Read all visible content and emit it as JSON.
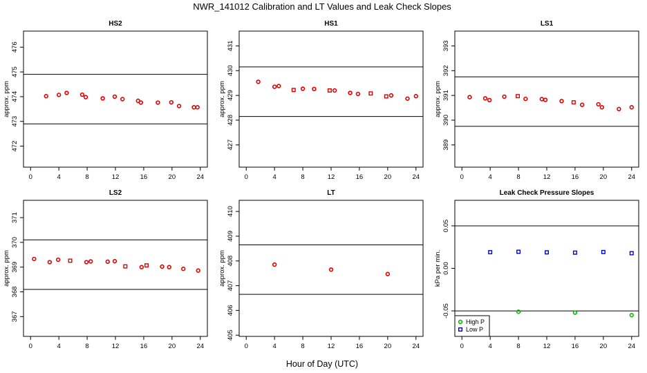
{
  "figure": {
    "title": "NWR_141012  Calibration and LT Values and Leak Check Slopes",
    "xlabel": "Hour of Day (UTC)"
  },
  "colors": {
    "red": "#dd0000",
    "green": "#00bb00",
    "blue": "#0000cc",
    "line": "#000000"
  },
  "chart_data": [
    {
      "type": "scatter",
      "title": "HS2",
      "ylabel": "approx. ppm",
      "xlim": [
        -1,
        25
      ],
      "ylim": [
        471.15,
        476.65
      ],
      "xticks": [
        0,
        4,
        8,
        12,
        16,
        20,
        24
      ],
      "yticks": [
        472,
        473,
        474,
        475,
        476
      ],
      "hlines": [
        474.9,
        472.9
      ],
      "series": [
        {
          "marker": "circle",
          "color": "#dd0000",
          "x": [
            2.2,
            4.0,
            5.1,
            7.3,
            7.8,
            10.2,
            11.9,
            13.0,
            15.2,
            15.6,
            18.0,
            19.9,
            21.0,
            23.1,
            23.6
          ],
          "y": [
            474.02,
            474.07,
            474.15,
            474.08,
            473.98,
            473.93,
            474.0,
            473.9,
            473.83,
            473.76,
            473.76,
            473.77,
            473.62,
            473.57,
            473.57
          ]
        }
      ]
    },
    {
      "type": "scatter",
      "title": "HS1",
      "ylabel": "approx. ppm",
      "xlim": [
        -1,
        25
      ],
      "ylim": [
        426.1,
        431.6
      ],
      "xticks": [
        0,
        4,
        8,
        12,
        16,
        20,
        24
      ],
      "yticks": [
        427,
        428,
        429,
        430,
        431
      ],
      "hlines": [
        430.15,
        428.15
      ],
      "series": [
        {
          "marker": "circle",
          "color": "#dd0000",
          "x": [
            1.7,
            4.0,
            4.6,
            8.0,
            9.6,
            12.5,
            14.7,
            15.8,
            20.5,
            22.8,
            24.0
          ],
          "y": [
            429.55,
            429.35,
            429.38,
            429.27,
            429.26,
            429.2,
            429.1,
            429.06,
            429.0,
            428.87,
            428.97
          ]
        },
        {
          "marker": "square",
          "color": "#dd0000",
          "x": [
            6.7,
            11.8,
            17.6,
            19.8
          ],
          "y": [
            429.22,
            429.2,
            429.08,
            428.96
          ]
        }
      ]
    },
    {
      "type": "scatter",
      "title": "LS1",
      "ylabel": "approx. ppm",
      "xlim": [
        -1,
        25
      ],
      "ylim": [
        388.1,
        393.6
      ],
      "xticks": [
        0,
        4,
        8,
        12,
        16,
        20,
        24
      ],
      "yticks": [
        389,
        390,
        391,
        392,
        393
      ],
      "hlines": [
        391.75,
        389.75
      ],
      "series": [
        {
          "marker": "circle",
          "color": "#dd0000",
          "x": [
            1.1,
            3.3,
            3.9,
            6.0,
            9.0,
            11.3,
            11.8,
            14.1,
            17.0,
            19.3,
            19.8,
            22.2,
            24.0
          ],
          "y": [
            390.93,
            390.88,
            390.81,
            390.95,
            390.86,
            390.85,
            390.82,
            390.77,
            390.62,
            390.64,
            390.52,
            390.45,
            390.52
          ]
        },
        {
          "marker": "square",
          "color": "#dd0000",
          "x": [
            7.9,
            15.8
          ],
          "y": [
            390.97,
            390.72
          ]
        }
      ]
    },
    {
      "type": "scatter",
      "title": "LS2",
      "ylabel": "approx. ppm",
      "xlim": [
        -1,
        25
      ],
      "ylim": [
        366.2,
        371.7
      ],
      "xticks": [
        0,
        4,
        8,
        12,
        16,
        20,
        24
      ],
      "yticks": [
        367,
        368,
        369,
        370,
        371
      ],
      "hlines": [
        370.1,
        368.1
      ],
      "series": [
        {
          "marker": "circle",
          "color": "#dd0000",
          "x": [
            0.5,
            2.7,
            3.9,
            7.9,
            8.5,
            10.9,
            11.9,
            15.7,
            18.6,
            19.6,
            21.6,
            23.7
          ],
          "y": [
            369.33,
            369.2,
            369.3,
            369.2,
            369.23,
            369.22,
            369.24,
            369.0,
            369.02,
            369.0,
            368.93,
            368.86
          ]
        },
        {
          "marker": "square",
          "color": "#dd0000",
          "x": [
            5.6,
            13.4,
            16.4
          ],
          "y": [
            369.26,
            369.03,
            369.07
          ]
        }
      ]
    },
    {
      "type": "scatter",
      "title": "LT",
      "ylabel": "approx. ppm",
      "xlim": [
        -1,
        25
      ],
      "ylim": [
        404.95,
        410.45
      ],
      "xticks": [
        0,
        4,
        8,
        12,
        16,
        20,
        24
      ],
      "yticks": [
        405,
        406,
        407,
        408,
        409,
        410
      ],
      "hlines": [
        408.65,
        406.65
      ],
      "series": [
        {
          "marker": "circle",
          "color": "#dd0000",
          "x": [
            4.0,
            12.0,
            20.0
          ],
          "y": [
            407.85,
            407.65,
            407.47
          ]
        }
      ]
    },
    {
      "type": "scatter",
      "title": "Leak Check Pressure Slopes",
      "ylabel": "kPa per min.",
      "xlim": [
        -1,
        25
      ],
      "ylim": [
        -0.08,
        0.08
      ],
      "xticks": [
        0,
        4,
        8,
        12,
        16,
        20,
        24
      ],
      "yticks": [
        -0.05,
        0.0,
        0.05
      ],
      "ytick_labels": [
        "-0.05",
        "0.00",
        "0.05"
      ],
      "hlines": [
        0.05,
        -0.05
      ],
      "legend_position": "bottom-left",
      "series": [
        {
          "name": "High P",
          "marker": "circle",
          "color": "#00bb00",
          "x": [
            8.0,
            16.0,
            24.0
          ],
          "y": [
            -0.051,
            -0.052,
            -0.055
          ]
        },
        {
          "name": "Low P",
          "marker": "square",
          "color": "#0000cc",
          "x": [
            4.0,
            8.0,
            12.0,
            16.0,
            20.0,
            24.0
          ],
          "y": [
            0.019,
            0.0195,
            0.0188,
            0.0185,
            0.0192,
            0.0178
          ]
        }
      ]
    }
  ]
}
